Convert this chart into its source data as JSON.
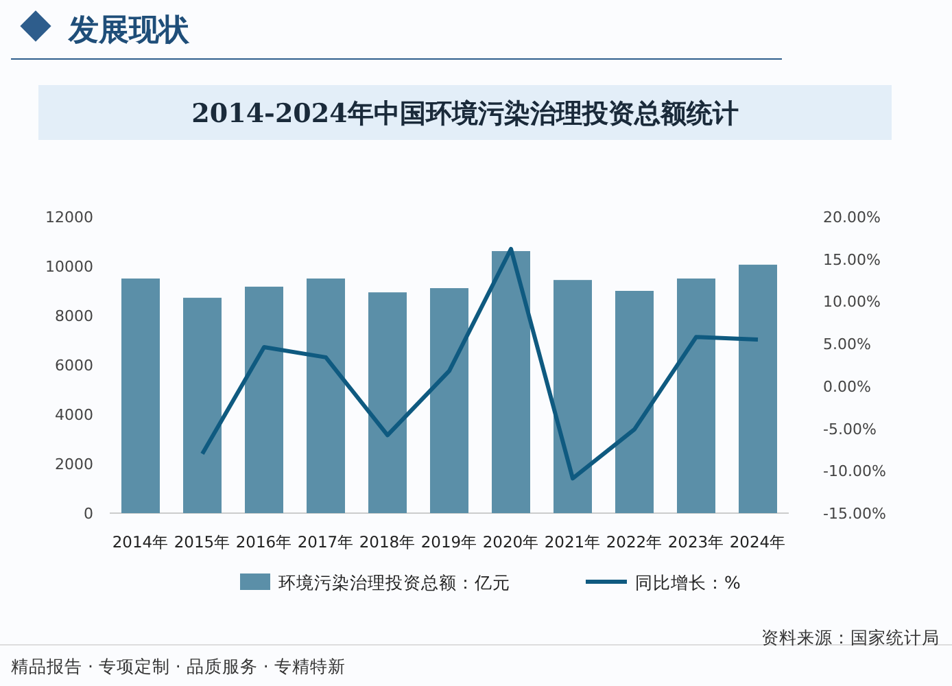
{
  "chart_data": {
    "type": "bar",
    "title": "2014-2024年中国环境污染治理投资总额统计",
    "annotations": [
      "发展现状",
      "资料来源：国家统计局",
      "精品报告 · 专项定制 · 品质服务 · 专精特新"
    ],
    "categories": [
      "2014年",
      "2015年",
      "2016年",
      "2017年",
      "2018年",
      "2019年",
      "2020年",
      "2021年",
      "2022年",
      "2023年",
      "2024年"
    ],
    "series": [
      {
        "name": "环境污染治理投资总额：亿元",
        "color": "#5b8fa8",
        "values": [
          9500,
          8720,
          9170,
          9500,
          8940,
          9110,
          10610,
          9440,
          9000,
          9500,
          10060
        ]
      },
      {
        "name": "同比增长：%",
        "type": "line",
        "axis": "y2",
        "color": "#0f5a80",
        "values": [
          null,
          -8.0,
          4.6,
          3.4,
          -5.8,
          1.8,
          16.2,
          -10.9,
          -5.1,
          5.8,
          5.5
        ]
      }
    ],
    "ylim": [
      0,
      12000
    ],
    "yticks": [
      0,
      2000,
      4000,
      6000,
      8000,
      10000,
      12000
    ],
    "y2lim": [
      -15,
      20
    ],
    "y2ticks": [
      {
        "value": -15,
        "label": "-15.00%"
      },
      {
        "value": -10,
        "label": "-10.00%"
      },
      {
        "value": -5,
        "label": "-5.00%"
      },
      {
        "value": 0,
        "label": "0.00%"
      },
      {
        "value": 5,
        "label": "5.00%"
      },
      {
        "value": 10,
        "label": "10.00%"
      },
      {
        "value": 15,
        "label": "15.00%"
      },
      {
        "value": 20,
        "label": "20.00%"
      }
    ],
    "legend": "bottom",
    "marker": "none",
    "line_style": "solid"
  }
}
